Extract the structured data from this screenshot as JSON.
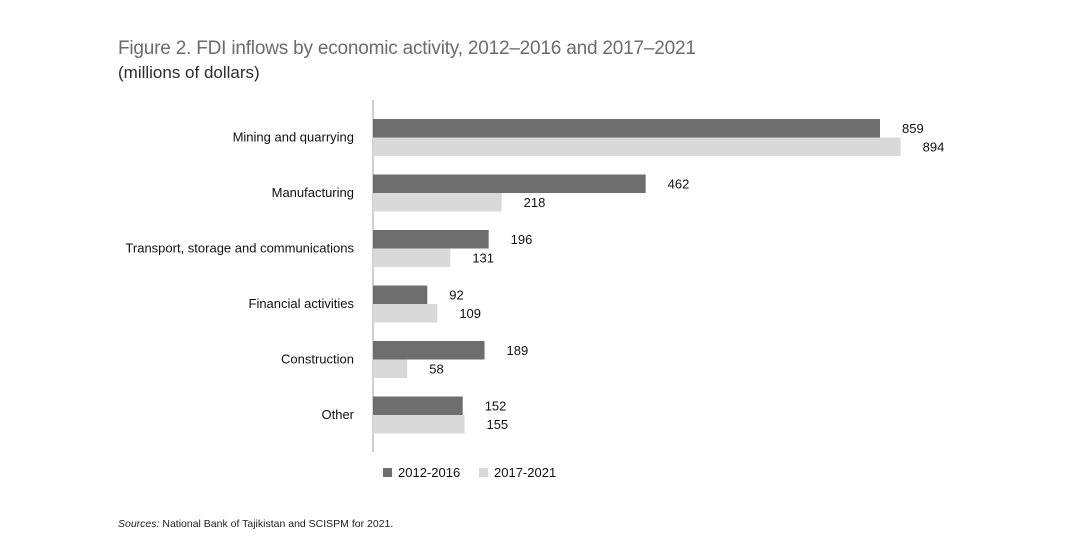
{
  "title": "Figure 2. FDI inflows by economic activity, 2012–2016 and 2017–2021",
  "subtitle": "(millions of dollars)",
  "source": {
    "label": "Sources:",
    "text": " National Bank of Tajikistan and SCISPM for 2021."
  },
  "colors": {
    "series_2012_2016": "#6e6e6e",
    "series_2017_2021": "#d9d9d9",
    "axis": "#a0a0a0"
  },
  "chart_data": {
    "type": "bar",
    "orientation": "horizontal",
    "categories": [
      "Mining and quarrying",
      "Manufacturing",
      "Transport, storage and communications",
      "Financial activities",
      "Construction",
      "Other"
    ],
    "series": [
      {
        "name": "2012-2016",
        "values": [
          859,
          462,
          196,
          92,
          189,
          152
        ]
      },
      {
        "name": "2017-2021",
        "values": [
          894,
          218,
          131,
          109,
          58,
          155
        ]
      }
    ],
    "xlim": [
      0,
      900
    ],
    "grid": false,
    "data_labels": true,
    "legend_position": "bottom"
  }
}
